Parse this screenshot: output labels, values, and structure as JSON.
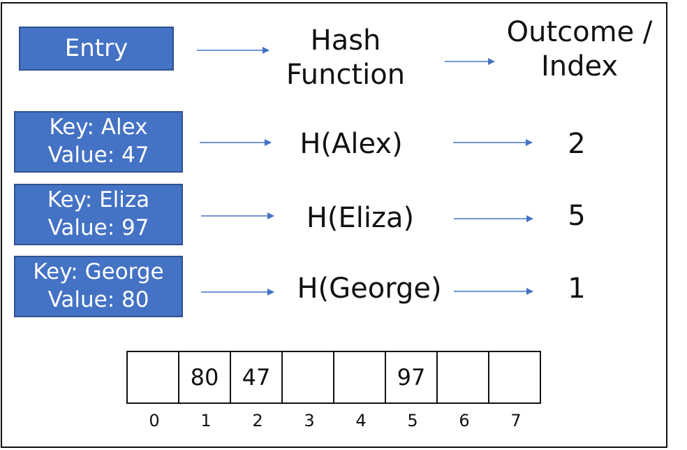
{
  "header": {
    "entry_label": "Entry",
    "hash_function_label": [
      "Hash",
      "Function"
    ],
    "outcome_label": [
      "Outcome /",
      "Index"
    ]
  },
  "entries": [
    {
      "key_line": "Key:  Alex",
      "value_line": "Value: 47",
      "hash": "H(Alex)",
      "index": "2"
    },
    {
      "key_line": "Key:  Eliza",
      "value_line": "Value: 97",
      "hash": "H(Eliza)",
      "index": "5"
    },
    {
      "key_line": "Key: George",
      "value_line": "Value: 80",
      "hash": "H(George)",
      "index": "1"
    }
  ],
  "table": {
    "cells": [
      "",
      "80",
      "47",
      "",
      "",
      "97",
      "",
      ""
    ],
    "indices": [
      "0",
      "1",
      "2",
      "3",
      "4",
      "5",
      "6",
      "7"
    ]
  },
  "colors": {
    "box_fill": "#4472c4",
    "box_border": "#2f528f",
    "arrow": "#4472c4"
  }
}
